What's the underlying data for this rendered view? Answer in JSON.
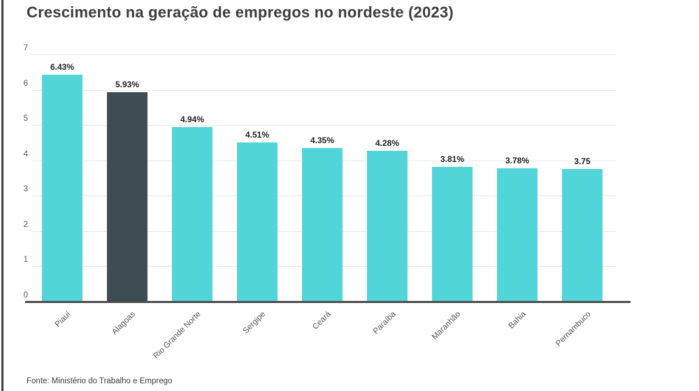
{
  "frame": {
    "border_color": "#3f3f3f",
    "background": "#ffffff"
  },
  "chart_data": {
    "type": "bar",
    "title": "Crescimento na geração de empregos no nordeste (2023)",
    "source": "Fonte: Ministério do Trabalho e Emprego",
    "categories": [
      "Piauí",
      "Alagoas",
      "Rio Grande Norte",
      "Sergipe",
      "Ceará",
      "Paraíba",
      "Maranhão",
      "Bahia",
      "Pernambuco"
    ],
    "values": [
      6.43,
      5.93,
      4.94,
      4.51,
      4.35,
      4.28,
      3.81,
      3.78,
      3.75
    ],
    "value_labels": [
      "6.43%",
      "5.93%",
      "4.94%",
      "4.51%",
      "4.35%",
      "4.28%",
      "3.81%",
      "3.78%",
      "3.75"
    ],
    "xlabel": "",
    "ylabel": "",
    "ylim": [
      0,
      7
    ],
    "yticks": [
      0,
      1,
      2,
      3,
      4,
      5,
      6,
      7
    ],
    "grid": true,
    "legend_position": "none",
    "bar_color": "#52d5d8",
    "highlight_color": "#3e4c54",
    "highlight_index": 1,
    "gridline_color": "#e7e7e7",
    "axis_color": "#4d4d4d"
  }
}
